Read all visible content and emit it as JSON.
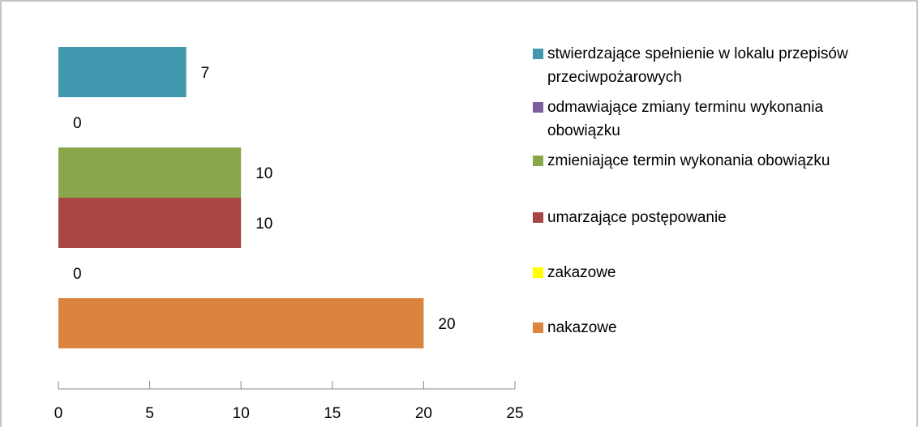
{
  "chart_data": {
    "type": "bar",
    "orientation": "horizontal",
    "categories": [
      null
    ],
    "series": [
      {
        "name": "stwierdzające spełnienie w lokalu przepisów przeciwpożarowych",
        "color": "#4198af",
        "values": [
          7
        ]
      },
      {
        "name": "odmawiające zmiany terminu wykonania obowiązku",
        "color": "#7e5f9d",
        "values": [
          0
        ]
      },
      {
        "name": "zmieniające termin wykonania obowiązku",
        "color": "#8aa64b",
        "values": [
          10
        ]
      },
      {
        "name": "umarzające postępowanie",
        "color": "#a84746",
        "values": [
          10
        ]
      },
      {
        "name": "zakazowe",
        "color": "#ffff00",
        "values": [
          0
        ]
      },
      {
        "name": "nakazowe",
        "color": "#db843d",
        "values": [
          20
        ]
      }
    ],
    "xlim": [
      0,
      25
    ],
    "xticks": [
      0,
      5,
      10,
      15,
      20,
      25
    ]
  }
}
